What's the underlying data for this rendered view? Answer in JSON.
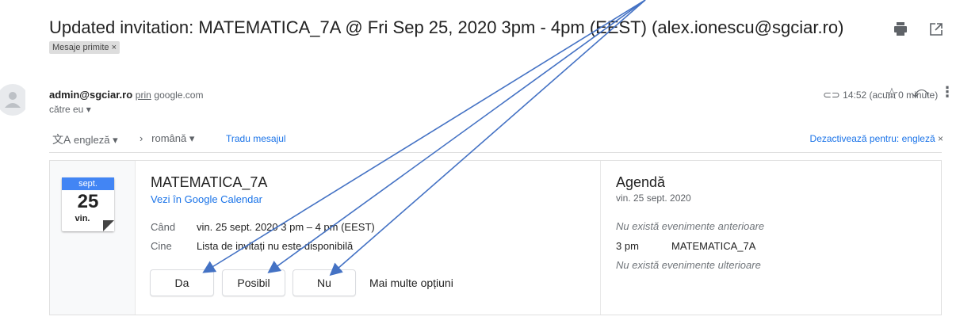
{
  "subject": "Updated invitation: MATEMATICA_7A @ Fri Sep 25, 2020 3pm - 4pm (EEST) (alex.ionescu@sgciar.ro)",
  "label": "Mesaje primite",
  "sender": {
    "email": "admin@sgciar.ro",
    "via": "prin",
    "domain": "google.com",
    "to": "către eu",
    "time": "14:52 (acum 0 minute)"
  },
  "translate": {
    "from": "engleză",
    "to": "română",
    "action": "Tradu mesajul",
    "disable": "Dezactivează pentru: engleză"
  },
  "calendar_icon": {
    "month": "sept.",
    "day": "25",
    "weekday": "vin."
  },
  "event": {
    "title": "MATEMATICA_7A",
    "link": "Vezi în Google Calendar",
    "when_label": "Când",
    "when": "vin. 25 sept. 2020 3 pm – 4 pm (EEST)",
    "who_label": "Cine",
    "who": "Lista de invitați nu este disponibilă",
    "buttons": [
      "Da",
      "Posibil",
      "Nu"
    ],
    "more": "Mai multe opțiuni"
  },
  "agenda": {
    "title": "Agendă",
    "date": "vin. 25 sept. 2020",
    "before": "Nu există evenimente anterioare",
    "time": "3 pm",
    "event": "MATEMATICA_7A",
    "after": "Nu există evenimente ulterioare"
  }
}
